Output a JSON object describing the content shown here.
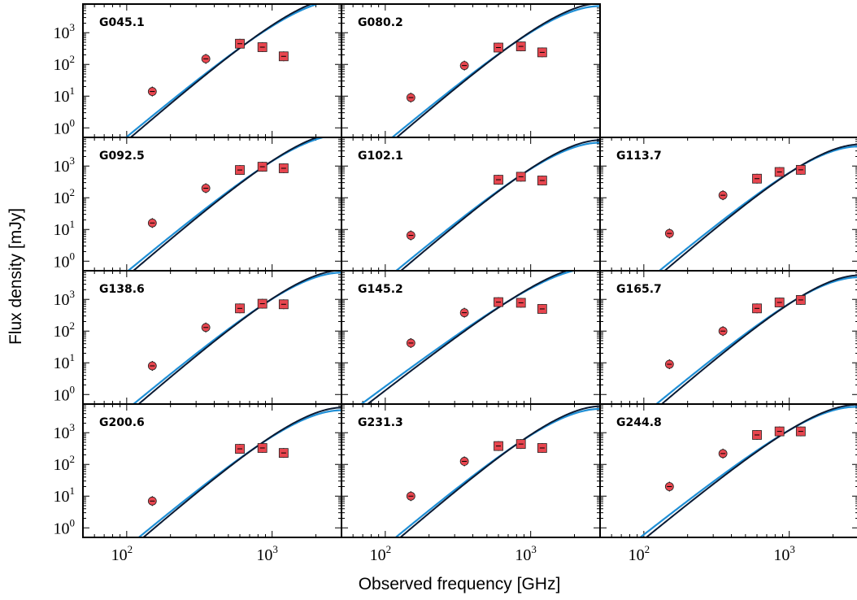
{
  "chart_data": {
    "type": "scatter",
    "layout": "small multiples, log-log, shared axes, 4x3 grid",
    "xlabel": "Observed frequency [GHz]",
    "ylabel": "Flux density [mJy]",
    "xscale": "log",
    "yscale": "log",
    "xlim": [
      50,
      3000
    ],
    "ylim": [
      0.5,
      8000
    ],
    "xticks": [
      100,
      1000
    ],
    "yticks": [
      1,
      10,
      100,
      1000
    ],
    "legend": "none",
    "colors": {
      "data_point": "#e8464f",
      "model_dark": "#0a1a33",
      "model_light": "#1f8fd6"
    },
    "panels": [
      {
        "name": "G045.1",
        "points": [
          [
            150,
            14
          ],
          [
            350,
            150
          ],
          [
            600,
            450
          ],
          [
            857,
            350
          ],
          [
            1200,
            180
          ]
        ],
        "peak_nu": 650,
        "peak_s": 430,
        "beta": 2.0
      },
      {
        "name": "G080.2",
        "points": [
          [
            150,
            9
          ],
          [
            350,
            92
          ],
          [
            600,
            340
          ],
          [
            857,
            370
          ],
          [
            1200,
            240
          ]
        ],
        "peak_nu": 720,
        "peak_s": 380,
        "beta": 2.0
      },
      null,
      {
        "name": "G092.5",
        "points": [
          [
            150,
            16
          ],
          [
            350,
            200
          ],
          [
            600,
            750
          ],
          [
            857,
            950
          ],
          [
            1200,
            850
          ]
        ],
        "peak_nu": 880,
        "peak_s": 980,
        "beta": 2.0
      },
      {
        "name": "G102.1",
        "points": [
          [
            150,
            6.5
          ],
          [
            350,
            null
          ],
          [
            600,
            370
          ],
          [
            857,
            460
          ],
          [
            1200,
            350
          ]
        ],
        "peak_nu": 820,
        "peak_s": 450,
        "beta": 2.0
      },
      {
        "name": "G113.7",
        "points": [
          [
            150,
            7.5
          ],
          [
            350,
            120
          ],
          [
            600,
            400
          ],
          [
            857,
            650
          ],
          [
            1200,
            760
          ]
        ],
        "peak_nu": 1100,
        "peak_s": 800,
        "beta": 2.0
      },
      {
        "name": "G138.6",
        "points": [
          [
            150,
            8
          ],
          [
            350,
            130
          ],
          [
            600,
            520
          ],
          [
            857,
            730
          ],
          [
            1200,
            700
          ]
        ],
        "peak_nu": 900,
        "peak_s": 760,
        "beta": 2.0
      },
      {
        "name": "G145.2",
        "points": [
          [
            150,
            42
          ],
          [
            350,
            380
          ],
          [
            600,
            820
          ],
          [
            857,
            780
          ],
          [
            1200,
            500
          ]
        ],
        "peak_nu": 700,
        "peak_s": 870,
        "beta": 1.6
      },
      {
        "name": "G165.7",
        "points": [
          [
            150,
            9
          ],
          [
            350,
            100
          ],
          [
            600,
            520
          ],
          [
            857,
            800
          ],
          [
            1200,
            960
          ]
        ],
        "peak_nu": 1100,
        "peak_s": 960,
        "beta": 2.0
      },
      {
        "name": "G200.6",
        "points": [
          [
            150,
            7
          ],
          [
            350,
            null
          ],
          [
            600,
            310
          ],
          [
            857,
            330
          ],
          [
            1200,
            230
          ]
        ],
        "peak_nu": 780,
        "peak_s": 360,
        "beta": 2.0
      },
      {
        "name": "G231.3",
        "points": [
          [
            150,
            10
          ],
          [
            350,
            125
          ],
          [
            600,
            380
          ],
          [
            857,
            440
          ],
          [
            1200,
            330
          ]
        ],
        "peak_nu": 800,
        "peak_s": 430,
        "beta": 2.0
      },
      {
        "name": "G244.8",
        "points": [
          [
            150,
            20
          ],
          [
            350,
            220
          ],
          [
            600,
            850
          ],
          [
            857,
            1100
          ],
          [
            1200,
            1100
          ]
        ],
        "peak_nu": 1000,
        "peak_s": 1200,
        "beta": 1.8
      }
    ]
  }
}
